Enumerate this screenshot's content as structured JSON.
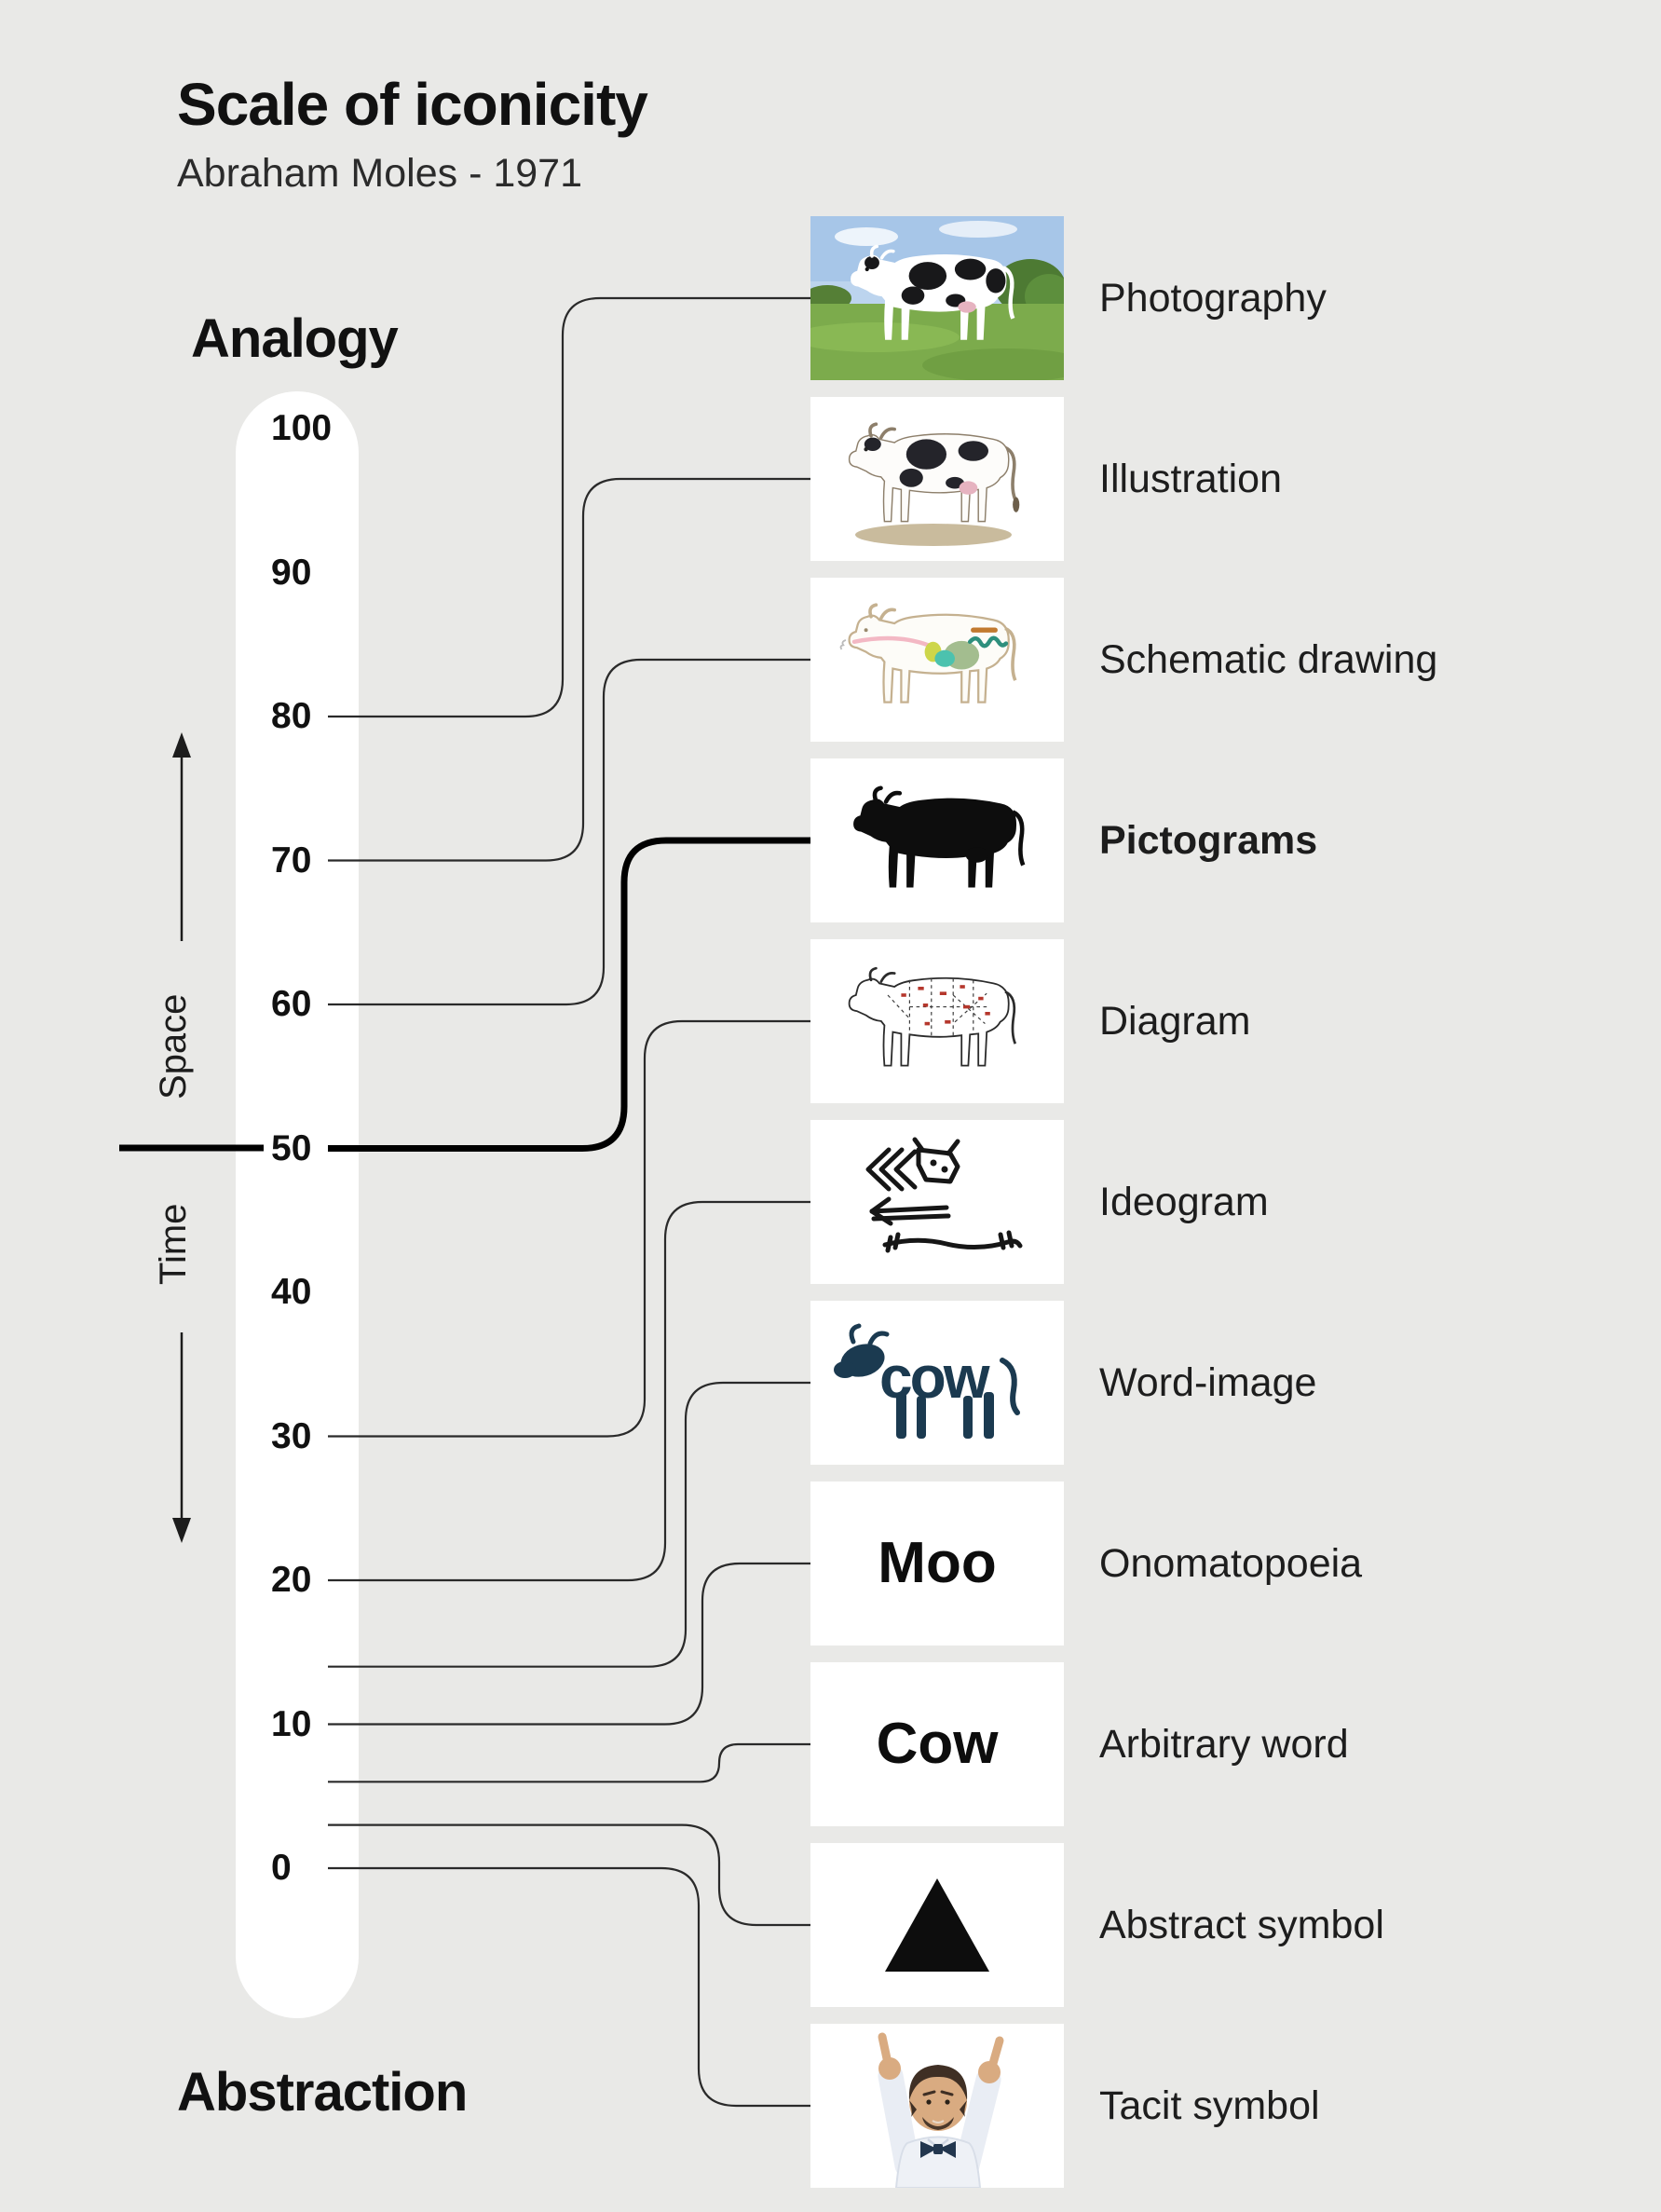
{
  "title": "Scale of iconicity",
  "subtitle": "Abraham Moles - 1971",
  "colors": {
    "background": "#e9e9e7",
    "ink": "#111111",
    "connector": "#2a2a2a",
    "emphasis_connector": "#000000",
    "card": "#ffffff",
    "word_image_navy": "#1b3a50",
    "diagram_red": "#b5372c"
  },
  "scale": {
    "top_label": "Analogy",
    "bottom_label": "Abstraction",
    "space_label": "Space",
    "time_label": "Time",
    "range": [
      0,
      100
    ],
    "ticks": [
      {
        "label": "100",
        "value": 100
      },
      {
        "label": "90",
        "value": 90
      },
      {
        "label": "80",
        "value": 80
      },
      {
        "label": "70",
        "value": 70
      },
      {
        "label": "60",
        "value": 60
      },
      {
        "label": "50",
        "value": 50
      },
      {
        "label": "40",
        "value": 40
      },
      {
        "label": "30",
        "value": 30
      },
      {
        "label": "20",
        "value": 20
      },
      {
        "label": "10",
        "value": 10
      },
      {
        "label": "0",
        "value": 0
      }
    ]
  },
  "items": [
    {
      "label": "Photography",
      "scale_value": 80,
      "emphasis": false,
      "art": "photo-cow"
    },
    {
      "label": "Illustration",
      "scale_value": 70,
      "emphasis": false,
      "art": "illustration-cow"
    },
    {
      "label": "Schematic drawing",
      "scale_value": 60,
      "emphasis": false,
      "art": "schematic-cow"
    },
    {
      "label": "Pictograms",
      "scale_value": 50,
      "emphasis": true,
      "art": "pictogram-cow"
    },
    {
      "label": "Diagram",
      "scale_value": 30,
      "emphasis": false,
      "art": "diagram-cow"
    },
    {
      "label": "Ideogram",
      "scale_value": 20,
      "emphasis": false,
      "art": "ideogram-cow"
    },
    {
      "label": "Word-image",
      "scale_value": 14,
      "emphasis": false,
      "art": "word-image-cow",
      "word": "cow"
    },
    {
      "label": "Onomatopoeia",
      "scale_value": 10,
      "emphasis": false,
      "art": "word-card",
      "word": "Moo"
    },
    {
      "label": "Arbitrary word",
      "scale_value": 6,
      "emphasis": false,
      "art": "word-card",
      "word": "Cow"
    },
    {
      "label": "Abstract symbol",
      "scale_value": 3,
      "emphasis": false,
      "art": "triangle"
    },
    {
      "label": "Tacit symbol",
      "scale_value": 0,
      "emphasis": false,
      "art": "person-horns-gesture"
    }
  ]
}
